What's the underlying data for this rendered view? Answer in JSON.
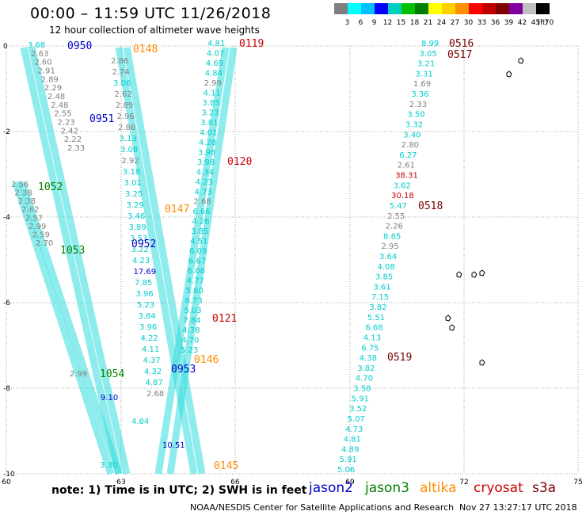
{
  "header": {
    "title": "00:00 – 11:59 UTC 11/26/2018",
    "subtitle": "12 hour collection of altimeter wave heights"
  },
  "colorbar": {
    "levels": [
      "3",
      "6",
      "9",
      "12",
      "15",
      "18",
      "21",
      "24",
      "27",
      "30",
      "33",
      "36",
      "39",
      "42",
      "45",
      "70"
    ],
    "unit": "(ft)",
    "colors": [
      "#7f7f7f",
      "#00ffff",
      "#00c0ff",
      "#0000ff",
      "#00d0c0",
      "#00c000",
      "#008000",
      "#ffff00",
      "#ffd000",
      "#ff9000",
      "#ff0000",
      "#c00000",
      "#800000",
      "#8000a0",
      "#c0c0c0",
      "#000000"
    ]
  },
  "axes": {
    "x_ticks": [
      "60",
      "63",
      "66",
      "69",
      "72",
      "75"
    ],
    "y_ticks": [
      "0",
      "-2",
      "-4",
      "-6",
      "-8",
      "-10"
    ]
  },
  "colors": {
    "jason2": "#0000cc",
    "jason3": "#008000",
    "altika": "#ff8c00",
    "cryosat": "#cc0000",
    "s3a": "#7a0000",
    "swh_low": "#00cccc",
    "swh_mid": "#7f7f7f",
    "swh_high": "#cc0000"
  },
  "tracks": [
    {
      "id": "0950",
      "sat": "jason2"
    },
    {
      "id": "0951",
      "sat": "jason2"
    },
    {
      "id": "0952",
      "sat": "jason2"
    },
    {
      "id": "0953",
      "sat": "jason2"
    },
    {
      "id": "1052",
      "sat": "jason3"
    },
    {
      "id": "1053",
      "sat": "jason3"
    },
    {
      "id": "1054",
      "sat": "jason3"
    },
    {
      "id": "0146",
      "sat": "altika"
    },
    {
      "id": "0147",
      "sat": "altika"
    },
    {
      "id": "0148",
      "sat": "altika"
    },
    {
      "id": "0145",
      "sat": "altika"
    },
    {
      "id": "0119",
      "sat": "cryosat"
    },
    {
      "id": "0120",
      "sat": "cryosat"
    },
    {
      "id": "0121",
      "sat": "cryosat"
    },
    {
      "id": "0516",
      "sat": "s3a"
    },
    {
      "id": "0517",
      "sat": "s3a"
    },
    {
      "id": "0518",
      "sat": "s3a"
    },
    {
      "id": "0519",
      "sat": "s3a"
    }
  ],
  "swh_values": {
    "altika_track": [
      "2.86",
      "2.74",
      "3.06",
      "2.62",
      "2.89",
      "2.96",
      "2.86",
      "3.13",
      "3.08",
      "2.92",
      "3.18",
      "3.01",
      "3.25",
      "3.29",
      "3.46",
      "3.89",
      "3.53",
      "3.22",
      "4.23",
      "17.69",
      "7.85",
      "3.96",
      "5.23",
      "3.84",
      "3.96",
      "4.22",
      "4.11",
      "4.37",
      "4.32",
      "4.87",
      "2.68"
    ],
    "cryosat_track": [
      "4.81",
      "4.07",
      "4.69",
      "4.84",
      "2.99",
      "4.11",
      "3.85",
      "3.23",
      "3.81",
      "4.01",
      "4.28",
      "3.98",
      "3.98",
      "4.34",
      "4.23",
      "4.73",
      "2.68",
      "6.66",
      "4.26",
      "3.85",
      "4.51",
      "6.09",
      "6.67",
      "6.08",
      "4.77",
      "5.60",
      "6.73",
      "5.03",
      "7.84",
      "4.78",
      "4.70",
      "5.23"
    ],
    "s3a_track": [
      "8.99",
      "3.05",
      "3.21",
      "3.31",
      "1.69",
      "3.36",
      "2.33",
      "3.50",
      "3.32",
      "3.40",
      "2.80",
      "6.27",
      "2.61",
      "38.31",
      "3.62",
      "30.18",
      "5.47",
      "2.55",
      "2.26",
      "8.65",
      "2.95",
      "3.64",
      "4.08",
      "3.85",
      "3.61",
      "7.15",
      "3.82",
      "5.51",
      "6.68",
      "4.13",
      "6.75",
      "4.38",
      "3.82",
      "4.70",
      "3.58",
      "5.91",
      "3.52",
      "5.07",
      "4.73",
      "4.81",
      "4.89",
      "5.91",
      "5.06"
    ],
    "jason_track_a": [
      "3.68",
      "2.63",
      "2.60",
      "2.91",
      "2.89",
      "2.29",
      "2.48",
      "2.48",
      "2.55",
      "2.23",
      "2.42",
      "2.22",
      "2.33"
    ],
    "jason_track_b": [
      "2.56",
      "2.38",
      "2.38",
      "2.62",
      "2.57",
      "2.99",
      "2.59",
      "2.70"
    ],
    "jason_track_c": [
      "2.99",
      "9.10",
      "4.84",
      "10.51"
    ],
    "bottom_left": [
      "3.30"
    ]
  },
  "note": "note:  1) Time is in UTC;  2) SWH is in feet",
  "legend": [
    {
      "label": "jason2",
      "sat": "jason2"
    },
    {
      "label": "jason3",
      "sat": "jason3"
    },
    {
      "label": "altika",
      "sat": "altika"
    },
    {
      "label": "cryosat",
      "sat": "cryosat"
    },
    {
      "label": "s3a",
      "sat": "s3a"
    }
  ],
  "credit": "NOAA/NESDIS Center for Satellite Applications and Research",
  "timestamp": "Nov 27 13:27:17 UTC 2018"
}
